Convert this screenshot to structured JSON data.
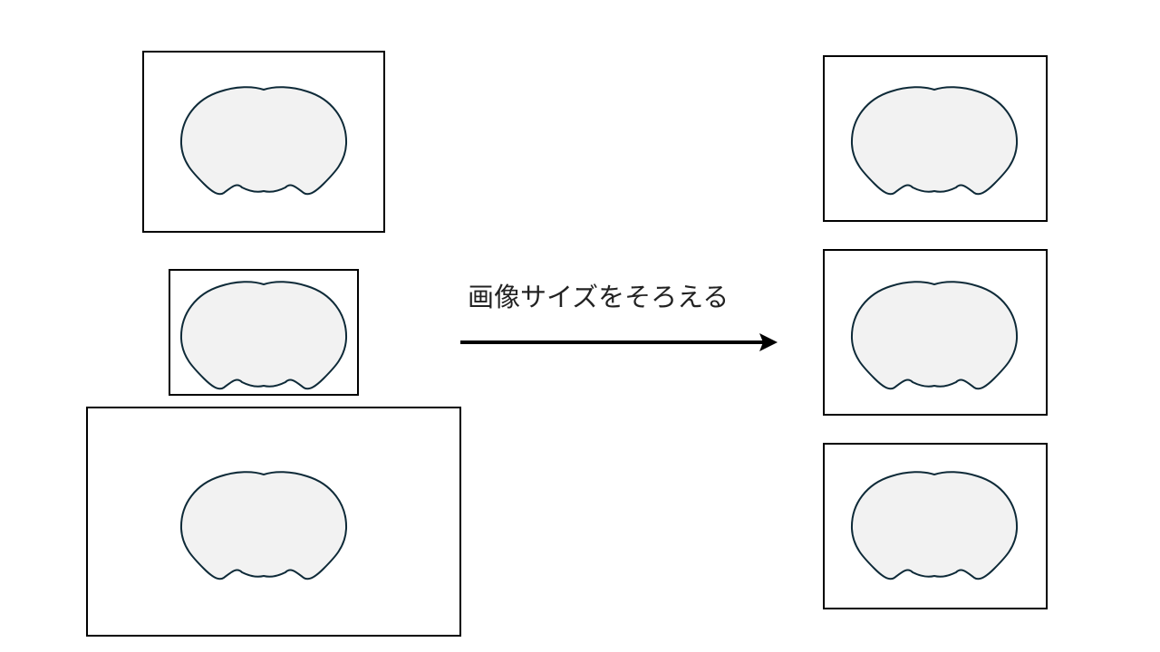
{
  "caption": "画像サイズをそろえる",
  "colors": {
    "frame_stroke": "#000000",
    "brain_fill": "#f2f2f2",
    "brain_stroke": "#0e2a38",
    "arrow": "#000000"
  },
  "icons": {
    "brain_section": "brain-section-icon",
    "arrow": "right-arrow-icon"
  },
  "groups": {
    "before_count": 3,
    "after_count": 3
  }
}
